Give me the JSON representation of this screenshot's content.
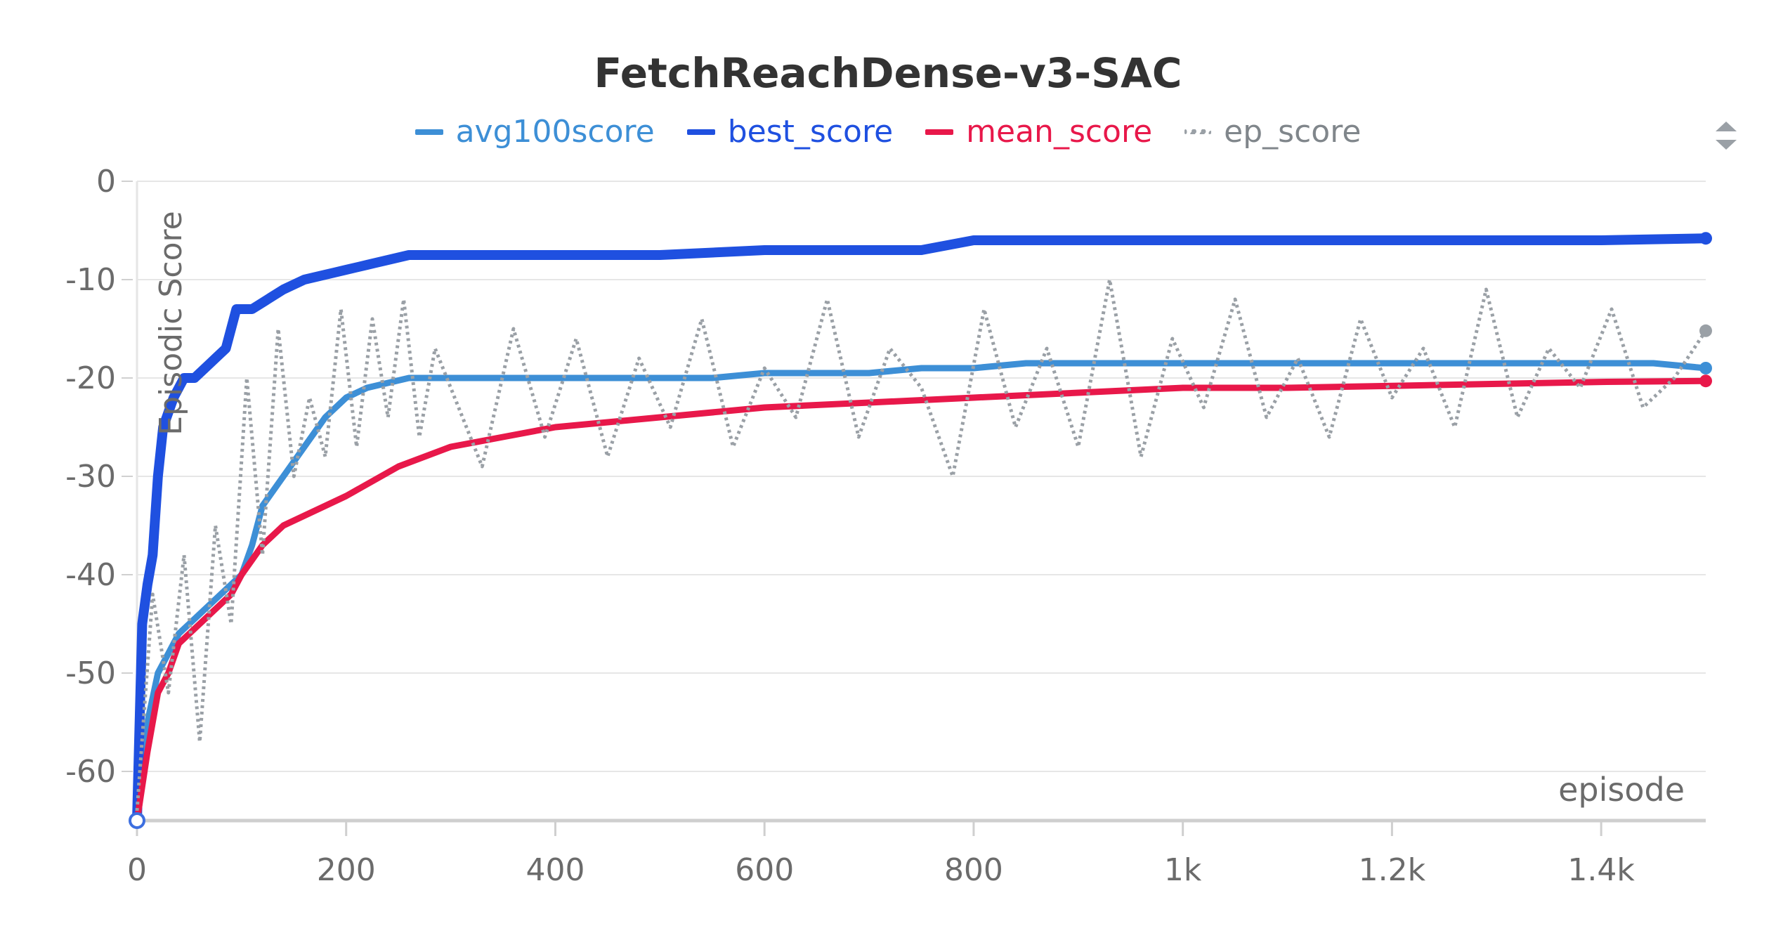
{
  "chart_data": {
    "type": "line",
    "title": "FetchReachDense-v3-SAC",
    "xlabel": "episode",
    "ylabel": "Episodic Score",
    "xlim": [
      0,
      1500
    ],
    "ylim": [
      -65,
      0
    ],
    "x_ticks": [
      0,
      200,
      400,
      600,
      800,
      1000,
      1200,
      1400
    ],
    "x_tick_labels": [
      "0",
      "200",
      "400",
      "600",
      "800",
      "1k",
      "1.2k",
      "1.4k"
    ],
    "y_ticks": [
      0,
      -10,
      -20,
      -30,
      -40,
      -50,
      -60
    ],
    "y_tick_labels": [
      "0",
      "-10",
      "-20",
      "-30",
      "-40",
      "-50",
      "-60"
    ],
    "grid": true,
    "legend_position": "top-center",
    "series": [
      {
        "name": "avg100score",
        "color": "#3d8fd6",
        "style": "solid",
        "x": [
          0,
          10,
          20,
          30,
          40,
          50,
          60,
          70,
          80,
          90,
          100,
          110,
          120,
          140,
          160,
          180,
          200,
          220,
          240,
          260,
          280,
          300,
          350,
          400,
          450,
          500,
          550,
          600,
          650,
          700,
          750,
          800,
          850,
          900,
          950,
          1000,
          1050,
          1100,
          1150,
          1200,
          1250,
          1300,
          1350,
          1400,
          1450,
          1500
        ],
        "y": [
          -65,
          -55,
          -50,
          -48,
          -46,
          -45,
          -44,
          -43,
          -42,
          -41,
          -40,
          -37,
          -33,
          -30,
          -27,
          -24,
          -22,
          -21,
          -20.5,
          -20,
          -20,
          -20,
          -20,
          -20,
          -20,
          -20,
          -20,
          -19.5,
          -19.5,
          -19.5,
          -19,
          -19,
          -18.5,
          -18.5,
          -18.5,
          -18.5,
          -18.5,
          -18.5,
          -18.5,
          -18.5,
          -18.5,
          -18.5,
          -18.5,
          -18.5,
          -18.5,
          -19
        ]
      },
      {
        "name": "best_score",
        "color": "#1f50e0",
        "style": "solid",
        "x": [
          0,
          5,
          10,
          15,
          20,
          25,
          35,
          45,
          55,
          65,
          75,
          85,
          95,
          110,
          125,
          140,
          160,
          180,
          200,
          220,
          240,
          260,
          300,
          400,
          500,
          600,
          700,
          750,
          800,
          900,
          1000,
          1100,
          1200,
          1300,
          1400,
          1500
        ],
        "y": [
          -65,
          -45,
          -41,
          -38,
          -30,
          -25,
          -22,
          -20,
          -20,
          -19,
          -18,
          -17,
          -13,
          -13,
          -12,
          -11,
          -10,
          -9.5,
          -9,
          -8.5,
          -8,
          -7.5,
          -7.5,
          -7.5,
          -7.5,
          -7,
          -7,
          -7,
          -6,
          -6,
          -6,
          -6,
          -6,
          -6,
          -6,
          -5.8
        ]
      },
      {
        "name": "mean_score",
        "color": "#e8184a",
        "style": "solid",
        "x": [
          0,
          10,
          20,
          30,
          40,
          50,
          60,
          70,
          80,
          90,
          100,
          120,
          140,
          160,
          180,
          200,
          250,
          300,
          350,
          400,
          450,
          500,
          600,
          700,
          800,
          900,
          1000,
          1100,
          1200,
          1300,
          1400,
          1500
        ],
        "y": [
          -65,
          -58,
          -52,
          -50,
          -47,
          -46,
          -45,
          -44,
          -43,
          -42,
          -40,
          -37,
          -35,
          -34,
          -33,
          -32,
          -29,
          -27,
          -26,
          -25,
          -24.5,
          -24,
          -23,
          -22.5,
          -22,
          -21.5,
          -21,
          -21,
          -20.8,
          -20.6,
          -20.4,
          -20.3
        ]
      },
      {
        "name": "ep_score",
        "color": "#9aa0a6",
        "style": "dotted",
        "note_points": "noisy episode scores",
        "x": [
          0,
          15,
          30,
          45,
          60,
          75,
          90,
          105,
          120,
          135,
          150,
          165,
          180,
          195,
          210,
          225,
          240,
          255,
          270,
          285,
          300,
          330,
          360,
          390,
          420,
          450,
          480,
          510,
          540,
          570,
          600,
          630,
          660,
          690,
          720,
          750,
          780,
          810,
          840,
          870,
          900,
          930,
          960,
          990,
          1020,
          1050,
          1080,
          1110,
          1140,
          1170,
          1200,
          1230,
          1260,
          1290,
          1320,
          1350,
          1380,
          1410,
          1440,
          1470,
          1500
        ],
        "y": [
          -64,
          -42,
          -52,
          -38,
          -57,
          -35,
          -45,
          -20,
          -38,
          -15,
          -30,
          -22,
          -28,
          -13,
          -27,
          -14,
          -24,
          -12,
          -26,
          -17,
          -21,
          -29,
          -15,
          -26,
          -16,
          -28,
          -18,
          -25,
          -14,
          -27,
          -19,
          -24,
          -12,
          -26,
          -17,
          -21,
          -30,
          -13,
          -25,
          -17,
          -27,
          -10,
          -28,
          -16,
          -23,
          -12,
          -24,
          -18,
          -26,
          -14,
          -22,
          -17,
          -25,
          -11,
          -24,
          -17,
          -21,
          -13,
          -23,
          -20,
          -15.2
        ]
      }
    ]
  }
}
